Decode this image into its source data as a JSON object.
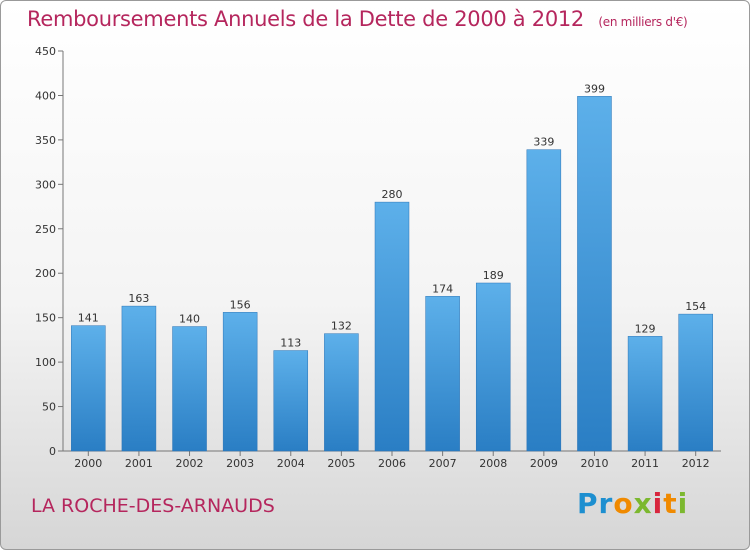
{
  "chart_data": {
    "type": "bar",
    "title": "Remboursements Annuels de la Dette de 2000 à 2012",
    "unit_note": "(en milliers d'€)",
    "categories": [
      "2000",
      "2001",
      "2002",
      "2003",
      "2004",
      "2005",
      "2006",
      "2007",
      "2008",
      "2009",
      "2010",
      "2011",
      "2012"
    ],
    "values": [
      141,
      163,
      140,
      156,
      113,
      132,
      280,
      174,
      189,
      339,
      399,
      129,
      154
    ],
    "ylim": [
      0,
      450
    ],
    "yticks": [
      0,
      50,
      100,
      150,
      200,
      250,
      300,
      350,
      400,
      450
    ],
    "grid": false,
    "bar_color_top": "#5db0ea",
    "bar_color_bottom": "#2a7ec4"
  },
  "footer": {
    "commune": "LA ROCHE-DES-ARNAUDS",
    "logo_parts": [
      "Pr",
      "o",
      "x",
      "i",
      "t",
      "i"
    ]
  }
}
